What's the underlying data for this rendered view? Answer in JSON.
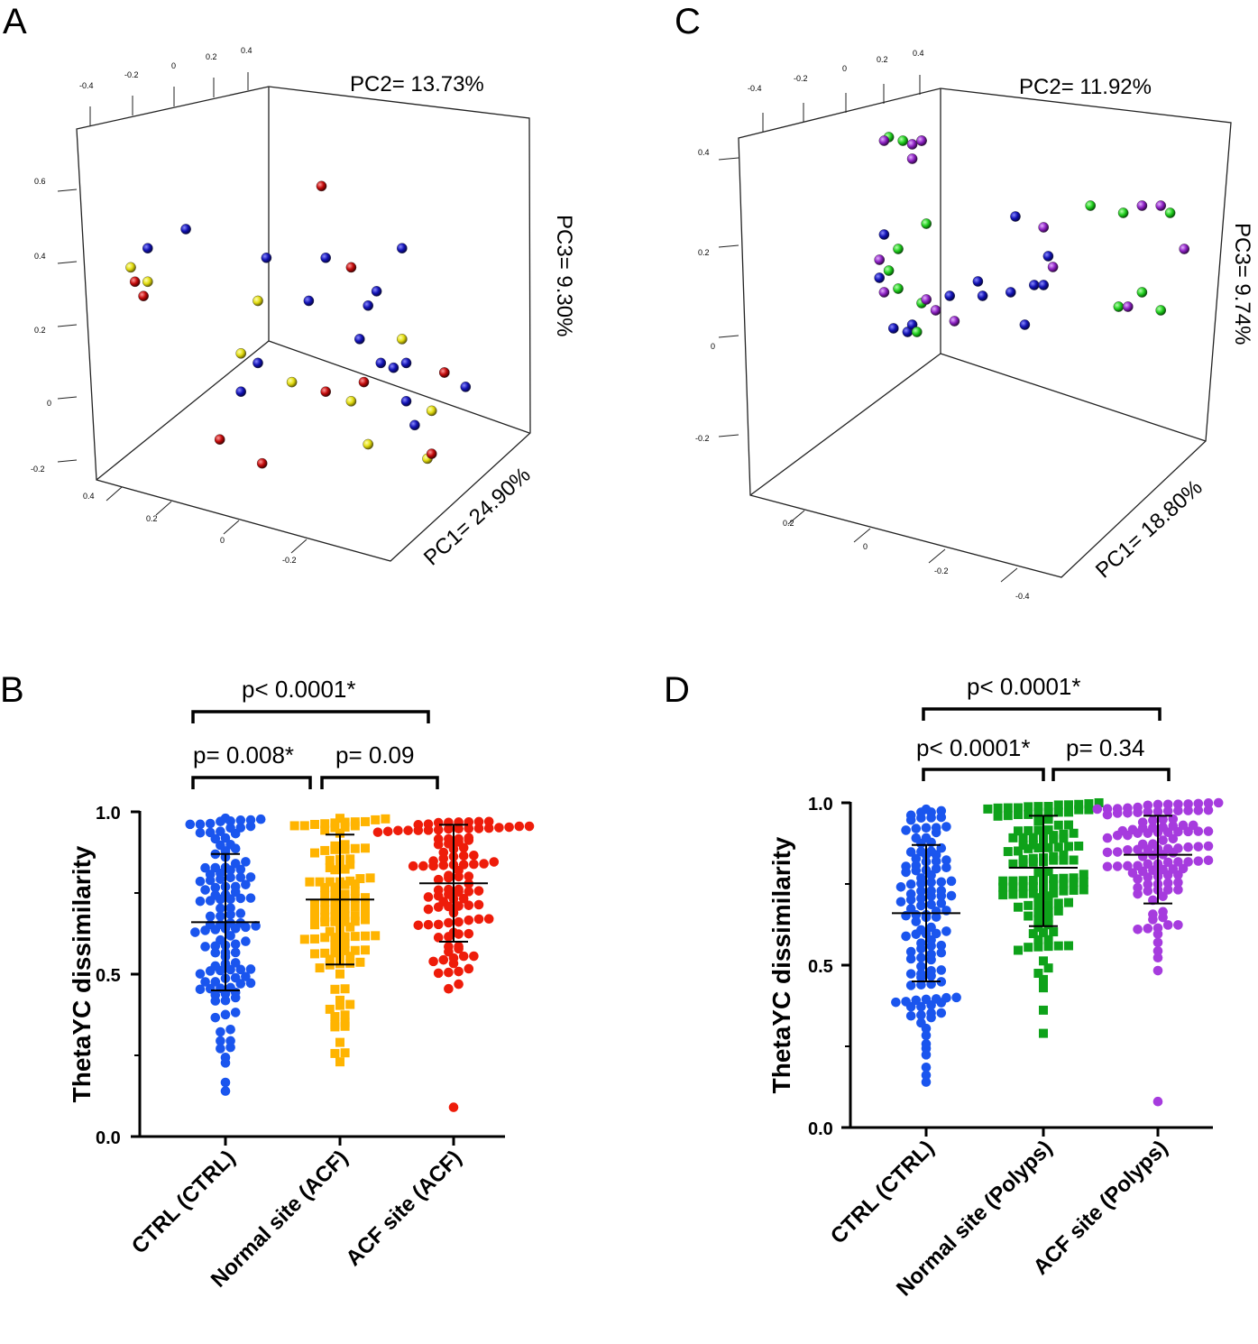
{
  "colors": {
    "ctrl": "#1a55ee",
    "normal_acf": "#ffb400",
    "acf_acf": "#ee1c0a",
    "normal_polyps": "#0ea21a",
    "acf_polyps": "#a63bde",
    "pca_blue": "#1212b4",
    "pca_yellow": "#e2dc10",
    "pca_red": "#c20a0a",
    "pca_green": "#22d020",
    "pca_purple": "#8e22c4"
  },
  "chart_data": [
    {
      "panel": "A",
      "type": "scatter",
      "title": "",
      "axis_labels": {
        "pc1": "PC1= 24.90%",
        "pc2": "PC2= 13.73%",
        "pc3": "PC3= 9.30%"
      },
      "ticks": {
        "top": [
          "-0.4",
          "-0.2",
          "0",
          "0.2",
          "0.4"
        ],
        "left": [
          "0.6",
          "0.4",
          "0.2",
          "0",
          "-0.2"
        ],
        "bottom": [
          "0.4",
          "0.2",
          "0",
          "-0.2"
        ]
      },
      "points_note": "approximate projected positions of the 3-D PCA spheres",
      "points": {
        "blue": [
          [
            0.14,
            0.34
          ],
          [
            0.23,
            0.3
          ],
          [
            0.42,
            0.36
          ],
          [
            0.52,
            0.45
          ],
          [
            0.56,
            0.36
          ],
          [
            0.68,
            0.43
          ],
          [
            0.66,
            0.46
          ],
          [
            0.74,
            0.34
          ],
          [
            0.64,
            0.53
          ],
          [
            0.69,
            0.58
          ],
          [
            0.72,
            0.59
          ],
          [
            0.75,
            0.58
          ],
          [
            0.75,
            0.66
          ],
          [
            0.36,
            0.64
          ],
          [
            0.84,
            0.6
          ],
          [
            0.89,
            0.63
          ],
          [
            0.77,
            0.71
          ],
          [
            0.4,
            0.58
          ]
        ],
        "yellow": [
          [
            0.1,
            0.38
          ],
          [
            0.14,
            0.41
          ],
          [
            0.36,
            0.56
          ],
          [
            0.4,
            0.45
          ],
          [
            0.48,
            0.62
          ],
          [
            0.62,
            0.66
          ],
          [
            0.74,
            0.53
          ],
          [
            0.81,
            0.68
          ],
          [
            0.8,
            0.78
          ],
          [
            0.66,
            0.75
          ]
        ],
        "red": [
          [
            0.11,
            0.41
          ],
          [
            0.13,
            0.44
          ],
          [
            0.31,
            0.74
          ],
          [
            0.55,
            0.21
          ],
          [
            0.41,
            0.79
          ],
          [
            0.56,
            0.64
          ],
          [
            0.62,
            0.38
          ],
          [
            0.81,
            0.77
          ],
          [
            0.84,
            0.6
          ],
          [
            0.65,
            0.62
          ]
        ]
      }
    },
    {
      "panel": "C",
      "type": "scatter",
      "title": "",
      "axis_labels": {
        "pc1": "PC1= 18.80%",
        "pc2": "PC2= 11.92%",
        "pc3": "PC3= 9.74%"
      },
      "ticks": {
        "top": [
          "-0.4",
          "-0.2",
          "0",
          "0.2",
          "0.4"
        ],
        "left": [
          "0.4",
          "0.2",
          "0",
          "-0.2"
        ],
        "bottom": [
          "0.2",
          "0",
          "-0.2",
          "-0.4"
        ]
      },
      "points_note": "approximate projected positions of the 3-D PCA spheres",
      "points": {
        "blue": [
          [
            0.27,
            0.4
          ],
          [
            0.26,
            0.52
          ],
          [
            0.55,
            0.35
          ],
          [
            0.47,
            0.53
          ],
          [
            0.62,
            0.46
          ],
          [
            0.59,
            0.54
          ],
          [
            0.54,
            0.56
          ],
          [
            0.41,
            0.57
          ],
          [
            0.48,
            0.57
          ],
          [
            0.29,
            0.66
          ],
          [
            0.32,
            0.67
          ],
          [
            0.33,
            0.65
          ],
          [
            0.57,
            0.65
          ],
          [
            0.61,
            0.54
          ]
        ],
        "green": [
          [
            0.28,
            0.13
          ],
          [
            0.31,
            0.14
          ],
          [
            0.35,
            0.14
          ],
          [
            0.71,
            0.32
          ],
          [
            0.78,
            0.34
          ],
          [
            0.88,
            0.34
          ],
          [
            0.36,
            0.37
          ],
          [
            0.3,
            0.44
          ],
          [
            0.28,
            0.5
          ],
          [
            0.3,
            0.55
          ],
          [
            0.35,
            0.59
          ],
          [
            0.82,
            0.56
          ],
          [
            0.86,
            0.61
          ],
          [
            0.77,
            0.6
          ],
          [
            0.34,
            0.67
          ]
        ],
        "purple": [
          [
            0.27,
            0.14
          ],
          [
            0.33,
            0.15
          ],
          [
            0.35,
            0.14
          ],
          [
            0.33,
            0.19
          ],
          [
            0.82,
            0.32
          ],
          [
            0.86,
            0.32
          ],
          [
            0.61,
            0.38
          ],
          [
            0.91,
            0.44
          ],
          [
            0.26,
            0.47
          ],
          [
            0.27,
            0.56
          ],
          [
            0.36,
            0.58
          ],
          [
            0.38,
            0.61
          ],
          [
            0.42,
            0.64
          ],
          [
            0.63,
            0.49
          ],
          [
            0.79,
            0.6
          ]
        ]
      }
    },
    {
      "panel": "B",
      "type": "scatter",
      "subtype": "dot_plot_mean_sd",
      "ylabel": "ThetaYC dissimilarity",
      "ylim": [
        0,
        1.0
      ],
      "yticks": [
        "0.0",
        "0.5",
        "1.0"
      ],
      "categories": [
        "CTRL (CTRL)",
        "Normal site (ACF)",
        "ACF site (ACF)"
      ],
      "series": [
        {
          "name": "CTRL (CTRL)",
          "mean": 0.66,
          "sd": 0.21,
          "min": 0.14,
          "max": 0.98
        },
        {
          "name": "Normal site (ACF)",
          "mean": 0.73,
          "sd": 0.2,
          "min": 0.23,
          "max": 0.98
        },
        {
          "name": "ACF site (ACF)",
          "mean": 0.78,
          "sd": 0.18,
          "min": 0.09,
          "max": 0.97
        }
      ],
      "comparisons": [
        {
          "from": 0,
          "to": 2,
          "text": "p< 0.0001*"
        },
        {
          "from": 0,
          "to": 1,
          "text": "p= 0.008*"
        },
        {
          "from": 1,
          "to": 2,
          "text": "p= 0.09"
        }
      ]
    },
    {
      "panel": "D",
      "type": "scatter",
      "subtype": "dot_plot_mean_sd",
      "ylabel": "ThetaYC dissimilarity",
      "ylim": [
        0,
        1.0
      ],
      "yticks": [
        "0.0",
        "0.5",
        "1.0"
      ],
      "categories": [
        "CTRL (CTRL)",
        "Normal site (Polyps)",
        "ACF site (Polyps)"
      ],
      "series": [
        {
          "name": "CTRL (CTRL)",
          "mean": 0.66,
          "sd": 0.21,
          "min": 0.14,
          "max": 0.98
        },
        {
          "name": "Normal site (Polyps)",
          "mean": 0.8,
          "sd": 0.18,
          "min": 0.29,
          "max": 1.0
        },
        {
          "name": "ACF site (Polyps)",
          "mean": 0.84,
          "sd": 0.15,
          "min": 0.08,
          "max": 1.0
        }
      ],
      "comparisons": [
        {
          "from": 0,
          "to": 2,
          "text": "p< 0.0001*"
        },
        {
          "from": 0,
          "to": 1,
          "text": "p< 0.0001*"
        },
        {
          "from": 1,
          "to": 2,
          "text": "p= 0.34"
        }
      ]
    }
  ],
  "panel_labels": [
    "A",
    "B",
    "C",
    "D"
  ]
}
